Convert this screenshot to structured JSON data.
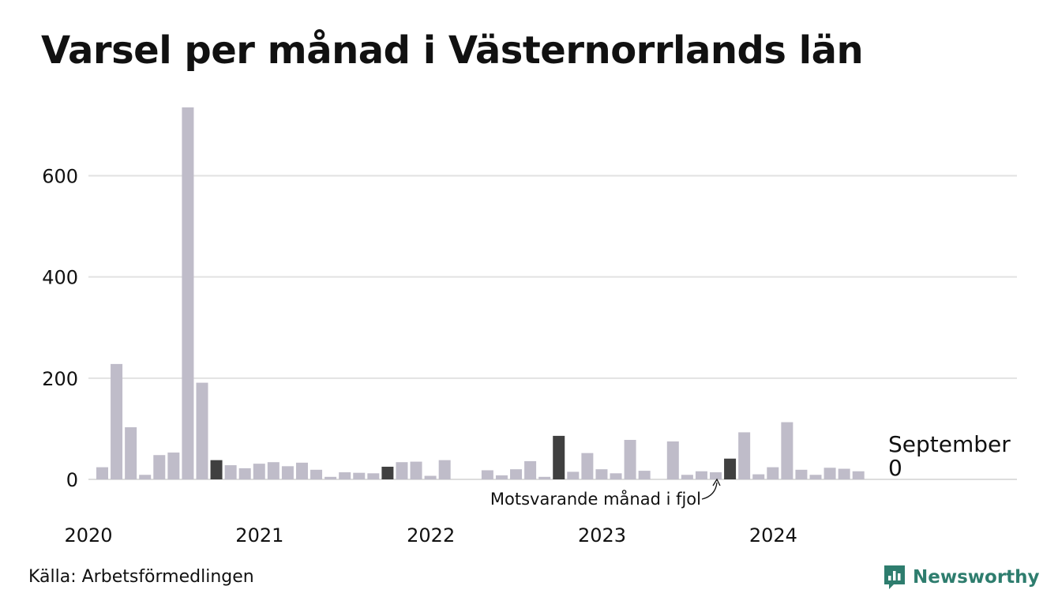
{
  "title": "Varsel per månad i Västernorrlands län",
  "source": "Källa: Arbetsförmedlingen",
  "brand": "Newsworthy",
  "colors": {
    "bar": "#bfbcc9",
    "highlight": "#404040",
    "grid": "#e2e2e2",
    "text": "#111111",
    "brand": "#2e7d6e"
  },
  "chart_data": {
    "type": "bar",
    "x_tick_labels": [
      "2020",
      "2021",
      "2022",
      "2023",
      "2024"
    ],
    "y_ticks": [
      0,
      200,
      400,
      600
    ],
    "ylim": [
      0,
      735
    ],
    "grid": true,
    "start": "2020-01",
    "months": [
      "2020-01",
      "2020-02",
      "2020-03",
      "2020-04",
      "2020-05",
      "2020-06",
      "2020-07",
      "2020-08",
      "2020-09",
      "2020-10",
      "2020-11",
      "2020-12",
      "2021-01",
      "2021-02",
      "2021-03",
      "2021-04",
      "2021-05",
      "2021-06",
      "2021-07",
      "2021-08",
      "2021-09",
      "2021-10",
      "2021-11",
      "2021-12",
      "2022-01",
      "2022-02",
      "2022-03",
      "2022-04",
      "2022-05",
      "2022-06",
      "2022-07",
      "2022-08",
      "2022-09",
      "2022-10",
      "2022-11",
      "2022-12",
      "2023-01",
      "2023-02",
      "2023-03",
      "2023-04",
      "2023-05",
      "2023-06",
      "2023-07",
      "2023-08",
      "2023-09",
      "2023-10",
      "2023-11",
      "2023-12",
      "2024-01",
      "2024-02",
      "2024-03",
      "2024-04",
      "2024-05",
      "2024-06",
      "2024-07",
      "2024-08",
      "2024-09"
    ],
    "values": [
      24,
      228,
      103,
      9,
      48,
      53,
      735,
      191,
      38,
      28,
      22,
      31,
      34,
      26,
      33,
      19,
      5,
      14,
      13,
      12,
      25,
      34,
      35,
      7,
      38,
      0,
      0,
      18,
      8,
      20,
      36,
      5,
      86,
      15,
      52,
      20,
      12,
      78,
      17,
      0,
      75,
      9,
      16,
      14,
      41,
      93,
      10,
      24,
      113,
      19,
      9,
      23,
      21,
      16,
      0,
      0,
      0
    ],
    "highlighted_months": [
      "2020-09",
      "2021-09",
      "2022-09",
      "2023-09"
    ],
    "latest_label": {
      "month": "September",
      "value": "0"
    },
    "annotation": "Motsvarande månad i fjol"
  }
}
